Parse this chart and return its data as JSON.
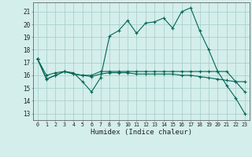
{
  "title": "",
  "xlabel": "Humidex (Indice chaleur)",
  "bg_color": "#d4eeeb",
  "grid_color": "#a0ccc8",
  "line_color": "#006655",
  "xlim": [
    -0.5,
    23.5
  ],
  "ylim": [
    12.5,
    21.7
  ],
  "yticks": [
    13,
    14,
    15,
    16,
    17,
    18,
    19,
    20,
    21
  ],
  "xtick_labels": [
    "0",
    "1",
    "2",
    "3",
    "4",
    "5",
    "6",
    "7",
    "8",
    "9",
    "10",
    "11",
    "12",
    "13",
    "14",
    "15",
    "16",
    "17",
    "18",
    "19",
    "20",
    "21",
    "22",
    "23"
  ],
  "series1": [
    17.3,
    15.7,
    16.0,
    16.3,
    16.2,
    15.5,
    14.7,
    15.8,
    19.1,
    19.5,
    20.3,
    19.3,
    20.1,
    20.2,
    20.5,
    19.7,
    21.0,
    21.3,
    19.5,
    18.0,
    16.3,
    15.2,
    14.2,
    13.0
  ],
  "series2": [
    17.3,
    16.0,
    16.2,
    16.3,
    16.1,
    16.0,
    15.9,
    16.1,
    16.2,
    16.2,
    16.2,
    16.1,
    16.1,
    16.1,
    16.1,
    16.1,
    16.0,
    16.0,
    15.9,
    15.8,
    15.7,
    15.6,
    15.5,
    15.5
  ],
  "series3": [
    17.3,
    15.7,
    16.0,
    16.3,
    16.1,
    16.0,
    16.0,
    16.3,
    16.3,
    16.3,
    16.3,
    16.3,
    16.3,
    16.3,
    16.3,
    16.3,
    16.3,
    16.3,
    16.3,
    16.3,
    16.3,
    16.3,
    15.5,
    14.7
  ]
}
